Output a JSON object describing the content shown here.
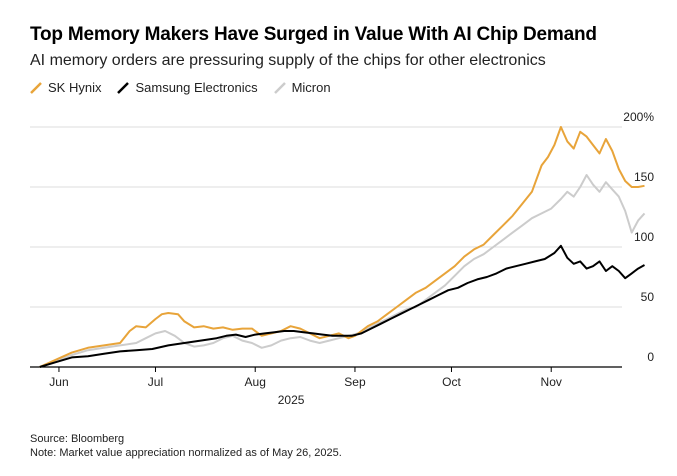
{
  "chart_data": {
    "type": "line",
    "title": "Top Memory Makers Have Surged in Value With AI Chip Demand",
    "subtitle": "AI memory orders are pressuring supply of the chips for other electronics",
    "xlabel": "2025",
    "ylabel": "",
    "ylim": [
      0,
      200
    ],
    "yticks": [
      0,
      50,
      100,
      150,
      200
    ],
    "ytick_labels": [
      "0",
      "50",
      "100",
      "150",
      "200%"
    ],
    "x_range_days": [
      -3,
      181
    ],
    "xticks": [
      {
        "label": "Jun",
        "day": 6
      },
      {
        "label": "Jul",
        "day": 36
      },
      {
        "label": "Aug",
        "day": 67
      },
      {
        "label": "Sep",
        "day": 98
      },
      {
        "label": "Oct",
        "day": 128
      },
      {
        "label": "Nov",
        "day": 159
      }
    ],
    "grid": true,
    "legend_position": "top-left",
    "series": [
      {
        "name": "SK Hynix",
        "color": "#e8a43a",
        "points": [
          [
            0,
            0
          ],
          [
            5,
            6
          ],
          [
            10,
            12
          ],
          [
            15,
            16
          ],
          [
            20,
            18
          ],
          [
            25,
            20
          ],
          [
            28,
            30
          ],
          [
            30,
            34
          ],
          [
            33,
            33
          ],
          [
            36,
            40
          ],
          [
            38,
            44
          ],
          [
            40,
            45
          ],
          [
            43,
            44
          ],
          [
            45,
            38
          ],
          [
            48,
            33
          ],
          [
            51,
            34
          ],
          [
            54,
            32
          ],
          [
            57,
            33
          ],
          [
            60,
            31
          ],
          [
            63,
            32
          ],
          [
            66,
            32
          ],
          [
            69,
            26
          ],
          [
            72,
            28
          ],
          [
            75,
            30
          ],
          [
            78,
            34
          ],
          [
            81,
            32
          ],
          [
            84,
            28
          ],
          [
            87,
            24
          ],
          [
            90,
            26
          ],
          [
            93,
            28
          ],
          [
            96,
            24
          ],
          [
            98,
            26
          ],
          [
            100,
            30
          ],
          [
            102,
            34
          ],
          [
            105,
            38
          ],
          [
            108,
            44
          ],
          [
            111,
            50
          ],
          [
            114,
            56
          ],
          [
            117,
            62
          ],
          [
            120,
            66
          ],
          [
            123,
            72
          ],
          [
            126,
            78
          ],
          [
            129,
            84
          ],
          [
            132,
            92
          ],
          [
            135,
            98
          ],
          [
            138,
            102
          ],
          [
            141,
            110
          ],
          [
            144,
            118
          ],
          [
            147,
            126
          ],
          [
            150,
            136
          ],
          [
            153,
            146
          ],
          [
            156,
            168
          ],
          [
            158,
            175
          ],
          [
            160,
            185
          ],
          [
            162,
            200
          ],
          [
            164,
            188
          ],
          [
            166,
            182
          ],
          [
            168,
            196
          ],
          [
            170,
            192
          ],
          [
            172,
            185
          ],
          [
            174,
            178
          ],
          [
            176,
            190
          ],
          [
            178,
            180
          ],
          [
            180,
            165
          ],
          [
            182,
            155
          ],
          [
            184,
            150
          ],
          [
            186,
            150
          ],
          [
            188,
            151
          ]
        ]
      },
      {
        "name": "Samsung Electronics",
        "color": "#000000",
        "points": [
          [
            0,
            0
          ],
          [
            5,
            4
          ],
          [
            10,
            8
          ],
          [
            15,
            9
          ],
          [
            20,
            11
          ],
          [
            25,
            13
          ],
          [
            30,
            14
          ],
          [
            35,
            15
          ],
          [
            40,
            18
          ],
          [
            45,
            20
          ],
          [
            50,
            22
          ],
          [
            55,
            24
          ],
          [
            58,
            26
          ],
          [
            61,
            27
          ],
          [
            64,
            25
          ],
          [
            67,
            27
          ],
          [
            70,
            28
          ],
          [
            73,
            29
          ],
          [
            76,
            30
          ],
          [
            79,
            30
          ],
          [
            82,
            29
          ],
          [
            85,
            28
          ],
          [
            88,
            27
          ],
          [
            91,
            26
          ],
          [
            94,
            26
          ],
          [
            97,
            26
          ],
          [
            100,
            28
          ],
          [
            103,
            32
          ],
          [
            106,
            36
          ],
          [
            109,
            40
          ],
          [
            112,
            44
          ],
          [
            115,
            48
          ],
          [
            118,
            52
          ],
          [
            121,
            56
          ],
          [
            124,
            60
          ],
          [
            127,
            64
          ],
          [
            130,
            66
          ],
          [
            133,
            70
          ],
          [
            136,
            73
          ],
          [
            139,
            75
          ],
          [
            142,
            78
          ],
          [
            145,
            82
          ],
          [
            148,
            84
          ],
          [
            151,
            86
          ],
          [
            154,
            88
          ],
          [
            157,
            90
          ],
          [
            160,
            95
          ],
          [
            162,
            101
          ],
          [
            164,
            91
          ],
          [
            166,
            86
          ],
          [
            168,
            88
          ],
          [
            170,
            82
          ],
          [
            172,
            84
          ],
          [
            174,
            88
          ],
          [
            176,
            80
          ],
          [
            178,
            84
          ],
          [
            180,
            80
          ],
          [
            182,
            74
          ],
          [
            184,
            78
          ],
          [
            186,
            82
          ],
          [
            188,
            85
          ]
        ]
      },
      {
        "name": "Micron",
        "color": "#cccccc",
        "points": [
          [
            0,
            0
          ],
          [
            5,
            5
          ],
          [
            10,
            10
          ],
          [
            15,
            14
          ],
          [
            20,
            16
          ],
          [
            25,
            18
          ],
          [
            30,
            20
          ],
          [
            33,
            24
          ],
          [
            36,
            28
          ],
          [
            39,
            30
          ],
          [
            42,
            26
          ],
          [
            45,
            20
          ],
          [
            48,
            17
          ],
          [
            51,
            18
          ],
          [
            54,
            20
          ],
          [
            57,
            24
          ],
          [
            60,
            26
          ],
          [
            63,
            22
          ],
          [
            66,
            20
          ],
          [
            69,
            16
          ],
          [
            72,
            18
          ],
          [
            75,
            22
          ],
          [
            78,
            24
          ],
          [
            81,
            25
          ],
          [
            84,
            22
          ],
          [
            87,
            20
          ],
          [
            90,
            22
          ],
          [
            93,
            24
          ],
          [
            96,
            26
          ],
          [
            99,
            28
          ],
          [
            102,
            32
          ],
          [
            105,
            36
          ],
          [
            108,
            40
          ],
          [
            111,
            44
          ],
          [
            114,
            48
          ],
          [
            117,
            50
          ],
          [
            120,
            56
          ],
          [
            123,
            62
          ],
          [
            126,
            68
          ],
          [
            129,
            76
          ],
          [
            132,
            84
          ],
          [
            135,
            90
          ],
          [
            138,
            94
          ],
          [
            141,
            100
          ],
          [
            144,
            106
          ],
          [
            147,
            112
          ],
          [
            150,
            118
          ],
          [
            153,
            124
          ],
          [
            156,
            128
          ],
          [
            159,
            132
          ],
          [
            162,
            140
          ],
          [
            164,
            146
          ],
          [
            166,
            142
          ],
          [
            168,
            150
          ],
          [
            170,
            160
          ],
          [
            172,
            152
          ],
          [
            174,
            146
          ],
          [
            176,
            154
          ],
          [
            178,
            148
          ],
          [
            180,
            142
          ],
          [
            182,
            130
          ],
          [
            184,
            112
          ],
          [
            186,
            122
          ],
          [
            188,
            128
          ]
        ]
      }
    ],
    "source": "Source: Bloomberg",
    "note": "Note: Market value appreciation normalized as of May 26, 2025."
  }
}
